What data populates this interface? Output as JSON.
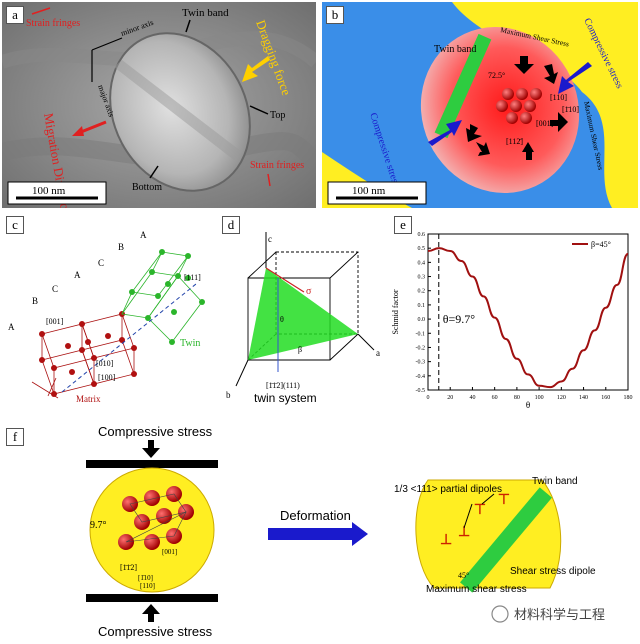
{
  "panels": {
    "a": {
      "label": "a",
      "twin_band": "Twin band",
      "minor_axis": "minor axis",
      "major_axis": "major axis",
      "strain_fringes_top": "Strain fringes",
      "strain_fringes_bottom": "Strain fringes",
      "dragging_force": "Dragging force",
      "migration_direction": "Migration Direction",
      "top": "Top",
      "bottom": "Bottom",
      "scale": "100  nm"
    },
    "b": {
      "label": "b",
      "twin_band": "Twin band",
      "max_shear_top": "Maximum Shear Stress",
      "max_shear_right": "Maximum Shear Stress",
      "compressive_right": "Compressive stress",
      "compressive_left": "Compressive stress",
      "angle": "72.5°",
      "dir_110": "[110]",
      "dir_1bar10": "[1̄10]",
      "dir_001": "[001]",
      "dir_11bar2": "[112̄]",
      "scale": "100  nm"
    },
    "c": {
      "label": "c",
      "stack_letters": [
        "A",
        "B",
        "C",
        "A",
        "C",
        "B",
        "A",
        "A"
      ],
      "dir_111": "[111]",
      "dir_001": "[001]",
      "dir_010": "[010]",
      "dir_100": "[100]",
      "twin": "Twin",
      "matrix": "Matrix"
    },
    "d": {
      "label": "d",
      "axis_c": "c",
      "axis_a": "a",
      "axis_b": "b",
      "sigma": "σ",
      "theta": "θ",
      "beta": "β",
      "plane": "[1̄1̄2](111)",
      "caption": "twin system"
    },
    "e": {
      "label": "e",
      "ylabel": "Schmid factor",
      "xlabel": "θ",
      "annotation": "θ=9.7°"
    },
    "f": {
      "label": "f",
      "compressive_top": "Compressive stress",
      "compressive_bottom": "Compressive stress",
      "deformation": "Deformation",
      "angle_97": "9.7°",
      "dir_11bar2": "[1̄1̄2]",
      "dir_001": "[001]",
      "dir_110": "[1̄10]",
      "dir_1bar10": "[110]",
      "partial_dipoles": "1/3 <111> partial dipoles",
      "twin_band": "Twin band",
      "shear_dipole": "Shear stress dipole",
      "max_shear": "Maximum shear stress",
      "angle_45": "45°"
    },
    "watermark": "材料科学与工程"
  },
  "colors": {
    "twin_green": "#2ecc40",
    "precipitate_red": "#cc1111",
    "yellow": "#ffee22",
    "blue_arrow": "#1a1acc",
    "curve": "#a01010"
  },
  "chart_data": {
    "type": "line",
    "title": "",
    "xlabel": "θ",
    "ylabel": "Schmid factor",
    "xlim": [
      0,
      180
    ],
    "ylim": [
      -0.5,
      0.6
    ],
    "xticks": [
      0,
      20,
      40,
      60,
      80,
      100,
      120,
      140,
      160,
      180
    ],
    "yticks": [
      -0.5,
      -0.4,
      -0.3,
      -0.2,
      -0.1,
      0.0,
      0.1,
      0.2,
      0.3,
      0.4,
      0.5,
      0.6
    ],
    "legend": "top-right",
    "series": [
      {
        "name": "β=45°",
        "x": [
          0,
          10,
          20,
          30,
          40,
          50,
          60,
          70,
          80,
          90,
          100,
          110,
          120,
          130,
          140,
          150,
          160,
          170,
          180
        ],
        "values": [
          0.48,
          0.5,
          0.48,
          0.41,
          0.3,
          0.16,
          0.01,
          -0.14,
          -0.28,
          -0.39,
          -0.47,
          -0.48,
          -0.44,
          -0.35,
          -0.22,
          -0.08,
          0.08,
          0.24,
          0.46
        ]
      }
    ],
    "vline_x": 9.7
  }
}
